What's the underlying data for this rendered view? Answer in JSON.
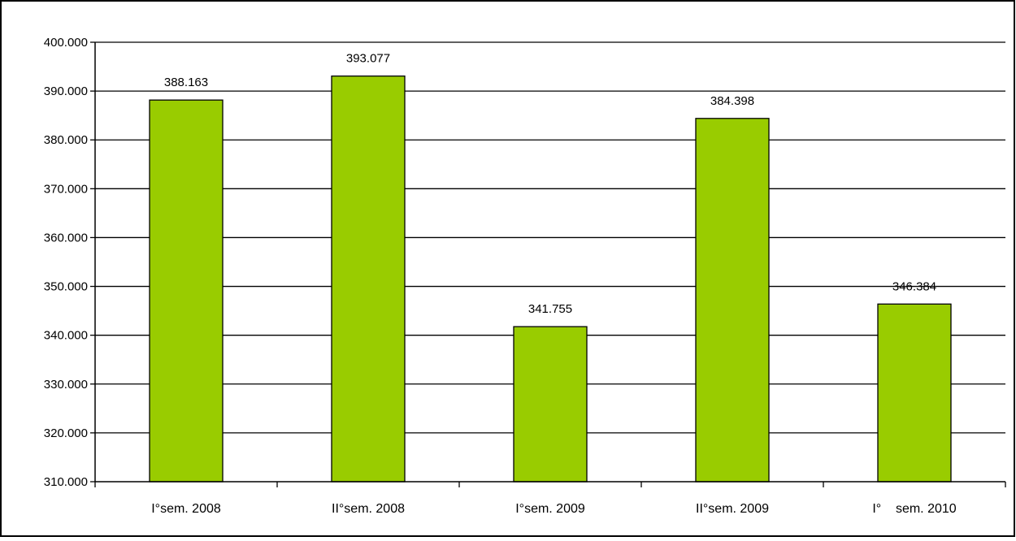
{
  "chart_data": {
    "type": "bar",
    "title": "",
    "xlabel": "",
    "ylabel": "",
    "categories": [
      "I°sem. 2008",
      "II°sem. 2008",
      "I°sem. 2009",
      "II°sem. 2009",
      "I°    sem. 2010"
    ],
    "values": [
      388163,
      393077,
      341755,
      384398,
      346384
    ],
    "data_labels": [
      "388.163",
      "393.077",
      "341.755",
      "384.398",
      "346.384"
    ],
    "ylim": [
      310000,
      400000
    ],
    "yticks": [
      310000,
      320000,
      330000,
      340000,
      350000,
      360000,
      370000,
      380000,
      390000,
      400000
    ],
    "ytick_labels": [
      "310.000",
      "320.000",
      "330.000",
      "340.000",
      "350.000",
      "360.000",
      "370.000",
      "380.000",
      "390.000",
      "400.000"
    ],
    "grid": true,
    "legend": "none",
    "colors": {
      "bar": "#99cc00",
      "bar_stroke": "#000000",
      "grid": "#000000"
    }
  }
}
